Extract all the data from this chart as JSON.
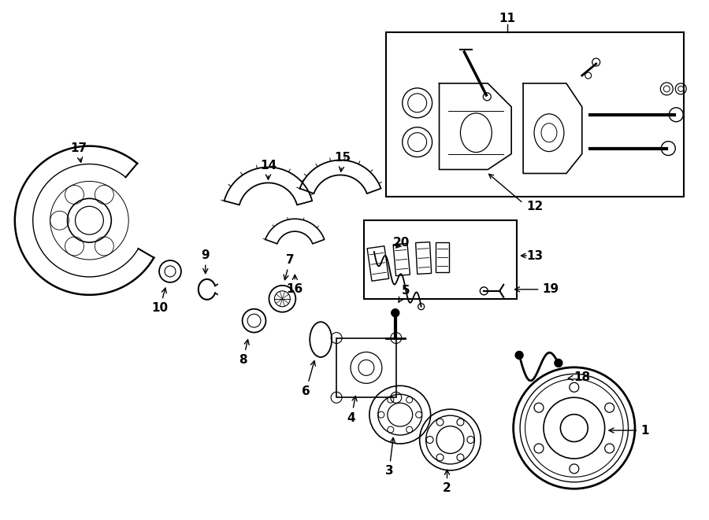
{
  "bg_color": "#ffffff",
  "line_color": "#000000",
  "fig_width": 9.0,
  "fig_height": 6.61,
  "dpi": 100,
  "label_fontsize": 11,
  "lw": 1.2
}
